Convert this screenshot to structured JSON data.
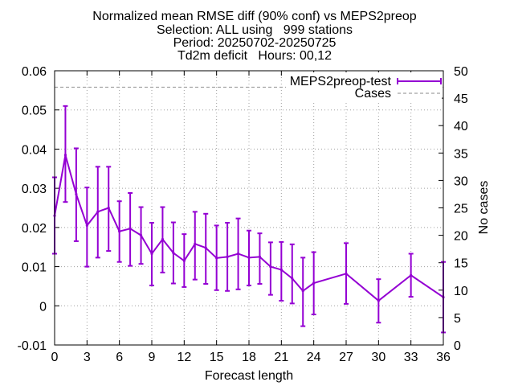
{
  "chart_data": {
    "type": "line",
    "title_lines": [
      "Normalized mean RMSE diff (90% conf) vs MEPS2preop",
      "Selection: ALL using   999 stations",
      "Period: 20250702-20250725",
      "Td2m deficit   Hours: 00,12"
    ],
    "xlabel": "Forecast length",
    "ylabel": "",
    "y2label": "No cases",
    "xlim": [
      0,
      36
    ],
    "ylim": [
      -0.01,
      0.06
    ],
    "y2lim": [
      0,
      50
    ],
    "xticks": [
      0,
      3,
      6,
      9,
      12,
      15,
      18,
      21,
      24,
      27,
      30,
      33,
      36
    ],
    "yticks": [
      -0.01,
      0,
      0.01,
      0.02,
      0.03,
      0.04,
      0.05,
      0.06
    ],
    "ytick_labels": [
      "-0.01",
      "0",
      "0.01",
      "0.02",
      "0.03",
      "0.04",
      "0.05",
      "0.06"
    ],
    "y2ticks": [
      0,
      5,
      10,
      15,
      20,
      25,
      30,
      35,
      40,
      45,
      50
    ],
    "grid": true,
    "legend_position": "top-right",
    "series": [
      {
        "name": "MEPS2preop-test",
        "color": "#9400D3",
        "style": "line-with-errorbars",
        "x": [
          0,
          1,
          2,
          3,
          4,
          5,
          6,
          7,
          8,
          9,
          10,
          11,
          12,
          13,
          14,
          15,
          16,
          17,
          18,
          19,
          20,
          21,
          22,
          23,
          24,
          27,
          30,
          33,
          36
        ],
        "values": [
          0.023,
          0.0385,
          0.0285,
          0.0205,
          0.024,
          0.025,
          0.019,
          0.0197,
          0.018,
          0.0133,
          0.017,
          0.0135,
          0.0115,
          0.0158,
          0.0148,
          0.0122,
          0.0125,
          0.0133,
          0.0123,
          0.0125,
          0.01,
          0.0092,
          0.007,
          0.0038,
          0.0058,
          0.0082,
          0.0013,
          0.0078,
          0.0022
        ],
        "lower": [
          0.0133,
          0.0265,
          0.0165,
          0.01,
          0.0123,
          0.014,
          0.0112,
          0.0102,
          0.0107,
          0.0052,
          0.0085,
          0.0057,
          0.0048,
          0.0067,
          0.0056,
          0.004,
          0.0038,
          0.0042,
          0.0052,
          0.0056,
          0.0028,
          0.0013,
          0.0006,
          -0.0052,
          -0.0022,
          0.0005,
          -0.0043,
          0.0023,
          -0.0068
        ],
        "upper": [
          0.0328,
          0.051,
          0.0402,
          0.0302,
          0.0355,
          0.0355,
          0.0267,
          0.0288,
          0.0252,
          0.0212,
          0.0252,
          0.0213,
          0.0183,
          0.024,
          0.0235,
          0.0205,
          0.0212,
          0.0223,
          0.0192,
          0.0185,
          0.0162,
          0.0163,
          0.0157,
          0.0123,
          0.0137,
          0.016,
          0.0068,
          0.0133,
          0.0112
        ]
      },
      {
        "name": "Cases",
        "color": "#A0A0A0",
        "style": "dashed",
        "axis": "y2",
        "x": [
          0,
          1,
          2,
          3,
          4,
          5,
          6,
          7,
          8,
          9,
          10,
          11,
          12,
          13,
          14,
          15,
          16,
          17,
          18,
          19,
          20,
          21,
          22,
          23,
          24,
          27,
          30,
          33,
          36
        ],
        "values": [
          47,
          47,
          47,
          47,
          47,
          47,
          47,
          47,
          47,
          47,
          47,
          47,
          47,
          47,
          47,
          47,
          47,
          47,
          47,
          47,
          47,
          47,
          47,
          47,
          47,
          47,
          47,
          47,
          47
        ]
      }
    ]
  }
}
